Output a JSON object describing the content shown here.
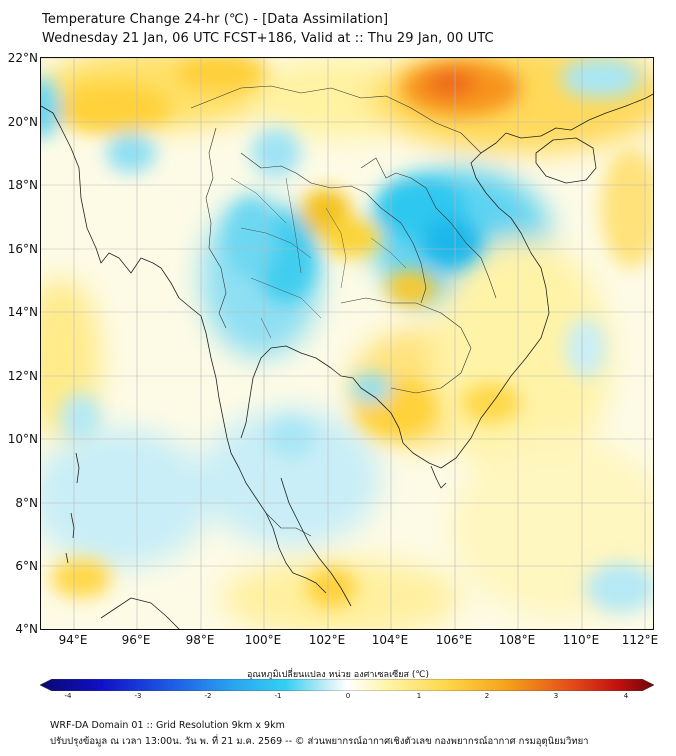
{
  "title_line1": "Temperature Change 24-hr (℃) - [Data Assimilation]",
  "title_line2": "Wednesday 21 Jan, 06 UTC FCST+186, Valid at :: Thu 29 Jan, 00 UTC",
  "lat_labels": [
    "22°N",
    "20°N",
    "18°N",
    "16°N",
    "14°N",
    "12°N",
    "10°N",
    "8°N",
    "6°N",
    "4°N"
  ],
  "lon_labels": [
    "94°E",
    "96°E",
    "98°E",
    "100°E",
    "102°E",
    "104°E",
    "106°E",
    "108°E",
    "110°E",
    "112°E"
  ],
  "colorbar": {
    "label": "อุณหภูมิเปลี่ยนแปลง หน่วย องศาเซลเซียส (℃)",
    "ticks": [
      "-4",
      "-3",
      "-2",
      "-1",
      "0",
      "1",
      "2",
      "3",
      "4"
    ],
    "colors": [
      "#08086e",
      "#1010c8",
      "#1f5fe6",
      "#2aa8f0",
      "#33d0f2",
      "#b8eaf6",
      "#ffffff",
      "#fff6b0",
      "#ffd84a",
      "#f5a21a",
      "#e6501a",
      "#c41010",
      "#6e0606"
    ]
  },
  "footer_line1": "WRF-DA Domain 01 :: Grid Resolution 9km x 9km",
  "footer_line2": "ปรับปรุงข้อมูล ณ เวลา 13:00น. วัน พ. ที่ 21 ม.ค. 2569 -- © ส่วนพยากรณ์อากาศเชิงตัวเลข กองพยากรณ์อากาศ กรมอุตุนิยมวิทยา"
}
